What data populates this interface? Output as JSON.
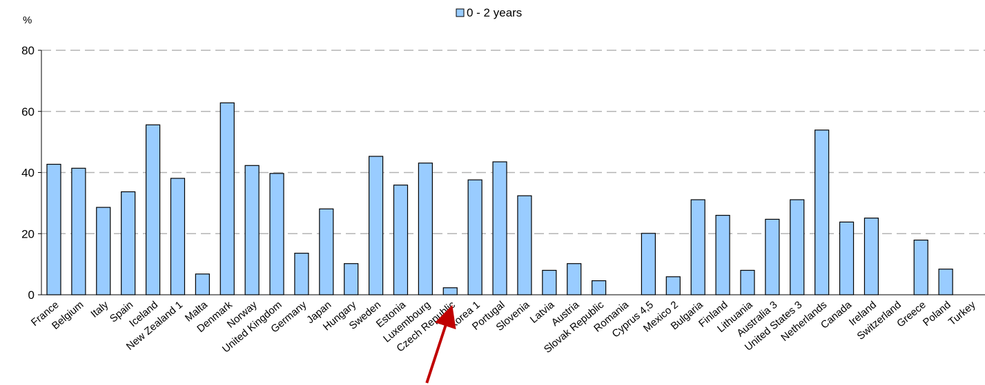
{
  "chart_data": {
    "type": "bar",
    "title": "",
    "xlabel": "",
    "ylabel": "%",
    "ylim": [
      0,
      80
    ],
    "yticks": [
      0,
      20,
      40,
      60,
      80
    ],
    "grid": true,
    "legend_position": "top-center",
    "categories": [
      "France",
      "Belgium",
      "Italy",
      "Spain",
      "Iceland",
      "New Zealand 1",
      "Malta",
      "Denmark",
      "Norway",
      "United Kingdom",
      "Germany",
      "Japan",
      "Hungary",
      "Sweden",
      "Estonia",
      "Luxembourg",
      "Czech Republic",
      "Korea 1",
      "Portugal",
      "Slovenia",
      "Latvia",
      "Austria",
      "Slovak Republic",
      "Romania",
      "Cyprus 4,5",
      "Mexico 2",
      "Bulgaria",
      "Finland",
      "Lithuania",
      "Australia 3",
      "United States 3",
      "Netherlands",
      "Canada",
      "Ireland",
      "Switzerland",
      "Greece",
      "Poland",
      "Turkey"
    ],
    "series": [
      {
        "name": "0 - 2 years",
        "color": "#99ccff",
        "values": [
          42.7,
          41.4,
          28.6,
          33.7,
          55.6,
          38.1,
          6.8,
          62.8,
          42.3,
          39.7,
          13.6,
          28.1,
          10.2,
          45.3,
          35.9,
          43.1,
          2.3,
          37.6,
          43.5,
          32.4,
          8.0,
          10.2,
          4.6,
          null,
          20.1,
          5.9,
          31.1,
          26.0,
          8.0,
          24.7,
          31.1,
          53.9,
          23.8,
          25.1,
          null,
          17.9,
          8.4,
          null
        ]
      }
    ],
    "annotations": [
      {
        "type": "arrow",
        "color": "#c00000",
        "points_to": "Czech Republic"
      }
    ]
  }
}
